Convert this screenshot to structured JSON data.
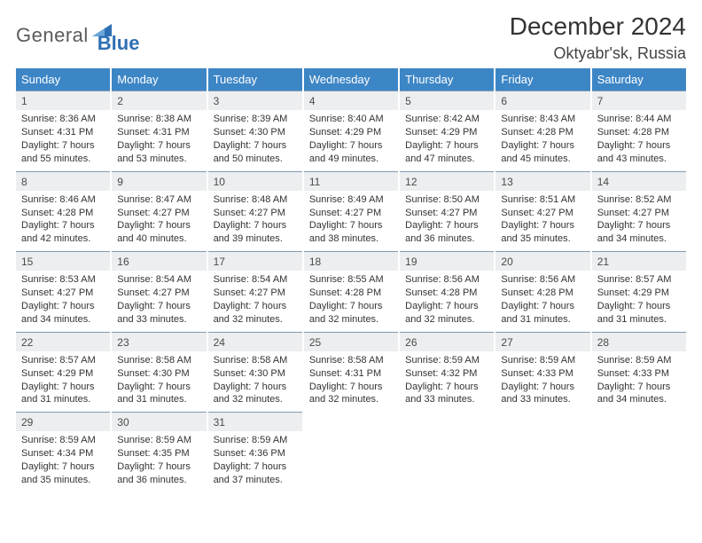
{
  "logo": {
    "general": "General",
    "blue": "Blue",
    "tri_color": "#2f6fb3"
  },
  "header": {
    "month_title": "December 2024",
    "location": "Oktyabr'sk, Russia"
  },
  "colors": {
    "header_bg": "#3d86c6",
    "header_fg": "#ffffff",
    "daynum_bg": "#eceeef",
    "daynum_border": "#7e9bb5",
    "text": "#333333"
  },
  "day_names": [
    "Sunday",
    "Monday",
    "Tuesday",
    "Wednesday",
    "Thursday",
    "Friday",
    "Saturday"
  ],
  "days": [
    {
      "n": "1",
      "sr": "8:36 AM",
      "ss": "4:31 PM",
      "dl": "7 hours and 55 minutes."
    },
    {
      "n": "2",
      "sr": "8:38 AM",
      "ss": "4:31 PM",
      "dl": "7 hours and 53 minutes."
    },
    {
      "n": "3",
      "sr": "8:39 AM",
      "ss": "4:30 PM",
      "dl": "7 hours and 50 minutes."
    },
    {
      "n": "4",
      "sr": "8:40 AM",
      "ss": "4:29 PM",
      "dl": "7 hours and 49 minutes."
    },
    {
      "n": "5",
      "sr": "8:42 AM",
      "ss": "4:29 PM",
      "dl": "7 hours and 47 minutes."
    },
    {
      "n": "6",
      "sr": "8:43 AM",
      "ss": "4:28 PM",
      "dl": "7 hours and 45 minutes."
    },
    {
      "n": "7",
      "sr": "8:44 AM",
      "ss": "4:28 PM",
      "dl": "7 hours and 43 minutes."
    },
    {
      "n": "8",
      "sr": "8:46 AM",
      "ss": "4:28 PM",
      "dl": "7 hours and 42 minutes."
    },
    {
      "n": "9",
      "sr": "8:47 AM",
      "ss": "4:27 PM",
      "dl": "7 hours and 40 minutes."
    },
    {
      "n": "10",
      "sr": "8:48 AM",
      "ss": "4:27 PM",
      "dl": "7 hours and 39 minutes."
    },
    {
      "n": "11",
      "sr": "8:49 AM",
      "ss": "4:27 PM",
      "dl": "7 hours and 38 minutes."
    },
    {
      "n": "12",
      "sr": "8:50 AM",
      "ss": "4:27 PM",
      "dl": "7 hours and 36 minutes."
    },
    {
      "n": "13",
      "sr": "8:51 AM",
      "ss": "4:27 PM",
      "dl": "7 hours and 35 minutes."
    },
    {
      "n": "14",
      "sr": "8:52 AM",
      "ss": "4:27 PM",
      "dl": "7 hours and 34 minutes."
    },
    {
      "n": "15",
      "sr": "8:53 AM",
      "ss": "4:27 PM",
      "dl": "7 hours and 34 minutes."
    },
    {
      "n": "16",
      "sr": "8:54 AM",
      "ss": "4:27 PM",
      "dl": "7 hours and 33 minutes."
    },
    {
      "n": "17",
      "sr": "8:54 AM",
      "ss": "4:27 PM",
      "dl": "7 hours and 32 minutes."
    },
    {
      "n": "18",
      "sr": "8:55 AM",
      "ss": "4:28 PM",
      "dl": "7 hours and 32 minutes."
    },
    {
      "n": "19",
      "sr": "8:56 AM",
      "ss": "4:28 PM",
      "dl": "7 hours and 32 minutes."
    },
    {
      "n": "20",
      "sr": "8:56 AM",
      "ss": "4:28 PM",
      "dl": "7 hours and 31 minutes."
    },
    {
      "n": "21",
      "sr": "8:57 AM",
      "ss": "4:29 PM",
      "dl": "7 hours and 31 minutes."
    },
    {
      "n": "22",
      "sr": "8:57 AM",
      "ss": "4:29 PM",
      "dl": "7 hours and 31 minutes."
    },
    {
      "n": "23",
      "sr": "8:58 AM",
      "ss": "4:30 PM",
      "dl": "7 hours and 31 minutes."
    },
    {
      "n": "24",
      "sr": "8:58 AM",
      "ss": "4:30 PM",
      "dl": "7 hours and 32 minutes."
    },
    {
      "n": "25",
      "sr": "8:58 AM",
      "ss": "4:31 PM",
      "dl": "7 hours and 32 minutes."
    },
    {
      "n": "26",
      "sr": "8:59 AM",
      "ss": "4:32 PM",
      "dl": "7 hours and 33 minutes."
    },
    {
      "n": "27",
      "sr": "8:59 AM",
      "ss": "4:33 PM",
      "dl": "7 hours and 33 minutes."
    },
    {
      "n": "28",
      "sr": "8:59 AM",
      "ss": "4:33 PM",
      "dl": "7 hours and 34 minutes."
    },
    {
      "n": "29",
      "sr": "8:59 AM",
      "ss": "4:34 PM",
      "dl": "7 hours and 35 minutes."
    },
    {
      "n": "30",
      "sr": "8:59 AM",
      "ss": "4:35 PM",
      "dl": "7 hours and 36 minutes."
    },
    {
      "n": "31",
      "sr": "8:59 AM",
      "ss": "4:36 PM",
      "dl": "7 hours and 37 minutes."
    }
  ],
  "labels": {
    "sunrise": "Sunrise: ",
    "sunset": "Sunset: ",
    "daylight": "Daylight: "
  }
}
